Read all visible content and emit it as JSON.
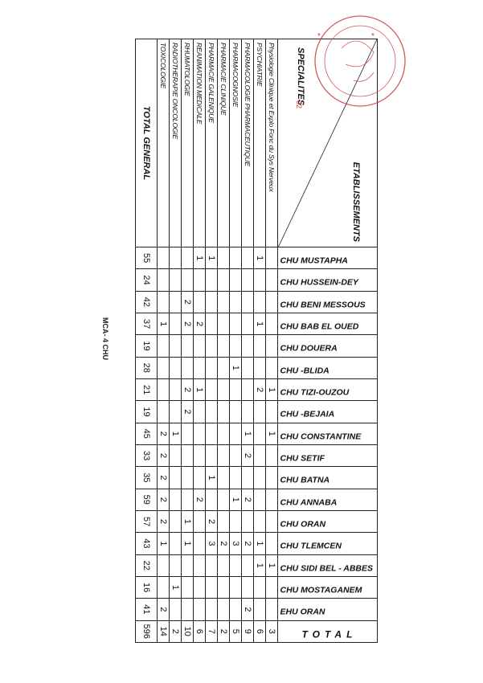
{
  "header": {
    "establishments_label": "ETABLISSEMENTS",
    "specialties_label": "SPECIALITES"
  },
  "stamp": {
    "number": "02",
    "color": "#d23a3a"
  },
  "establishments": [
    "CHU  MUSTAPHA",
    "CHU  HUSSEIN-DEY",
    "CHU BENI MESSOUS",
    "CHU BAB EL OUED",
    "CHU DOUERA",
    "CHU -BLIDA",
    "CHU   TIZI-OUZOU",
    "CHU -BEJAIA",
    "CHU  CONSTANTINE",
    "CHU  SETIF",
    "CHU  BATNA",
    "CHU  ANNABA",
    "CHU  ORAN",
    "CHU  TLEMCEN",
    "CHU  SIDI  BEL - ABBES",
    "CHU  MOSTAGANEM",
    "EHU  ORAN"
  ],
  "total_label": "TOTAL",
  "specialties": [
    {
      "name": "Physiologie Clinique et Explo Fonc du Sys Nerveux",
      "values": [
        "",
        "",
        "",
        "",
        "",
        "",
        "1",
        "",
        "1",
        "",
        "",
        "",
        "",
        "",
        "1",
        "",
        ""
      ],
      "total": "3"
    },
    {
      "name": "PSYCHIATRIE",
      "values": [
        "1",
        "",
        "",
        "1",
        "",
        "",
        "2",
        "",
        "",
        "",
        "",
        "",
        "",
        "1",
        "1",
        "",
        ""
      ],
      "total": "6"
    },
    {
      "name": "PHARMACOLOGIE PHARMACEUTIQUE",
      "values": [
        "",
        "",
        "",
        "",
        "",
        "",
        "",
        "",
        "1",
        "2",
        "",
        "2",
        "",
        "2",
        "",
        "",
        "2"
      ],
      "total": "9"
    },
    {
      "name": "PHARMACOGNOSIE",
      "values": [
        "",
        "",
        "",
        "",
        "",
        "1",
        "",
        "",
        "",
        "",
        "",
        "1",
        "",
        "3",
        "",
        "",
        ""
      ],
      "total": "5"
    },
    {
      "name": "PHARMACIE CLINIQUE",
      "values": [
        "",
        "",
        "",
        "",
        "",
        "",
        "",
        "",
        "",
        "",
        "",
        "",
        "",
        "2",
        "",
        "",
        ""
      ],
      "total": "2"
    },
    {
      "name": "PHARMACIE GALENIQUE",
      "values": [
        "1",
        "",
        "",
        "",
        "",
        "",
        "",
        "",
        "",
        "",
        "1",
        "",
        "2",
        "3",
        "",
        "",
        ""
      ],
      "total": "7"
    },
    {
      "name": "REANIMATION MEDICALE",
      "values": [
        "1",
        "",
        "",
        "2",
        "",
        "",
        "1",
        "",
        "",
        "",
        "",
        "2",
        "",
        "",
        "",
        "",
        ""
      ],
      "total": "6"
    },
    {
      "name": "RHUMATOLOGIE",
      "values": [
        "",
        "",
        "2",
        "2",
        "",
        "",
        "2",
        "2",
        "",
        "",
        "",
        "",
        "1",
        "1",
        "",
        "",
        ""
      ],
      "total": "10"
    },
    {
      "name": "RADIOTHERAPIE ONCOLOGIE",
      "values": [
        "",
        "",
        "",
        "",
        "",
        "",
        "",
        "",
        "1",
        "",
        "",
        "",
        "",
        "",
        "",
        "1",
        ""
      ],
      "total": "2"
    },
    {
      "name": "TOXICOLOGIE",
      "values": [
        "",
        "",
        "",
        "1",
        "",
        "",
        "",
        "",
        "2",
        "2",
        "2",
        "2",
        "2",
        "1",
        "",
        "",
        "2"
      ],
      "total": "14"
    }
  ],
  "total_general": {
    "label": "TOTAL GENERAL",
    "values": [
      "55",
      "24",
      "42",
      "37",
      "19",
      "28",
      "21",
      "19",
      "45",
      "33",
      "35",
      "59",
      "57",
      "43",
      "22",
      "16",
      "41"
    ],
    "grand_total": "596"
  },
  "footer": "MCA- 4 CHU"
}
